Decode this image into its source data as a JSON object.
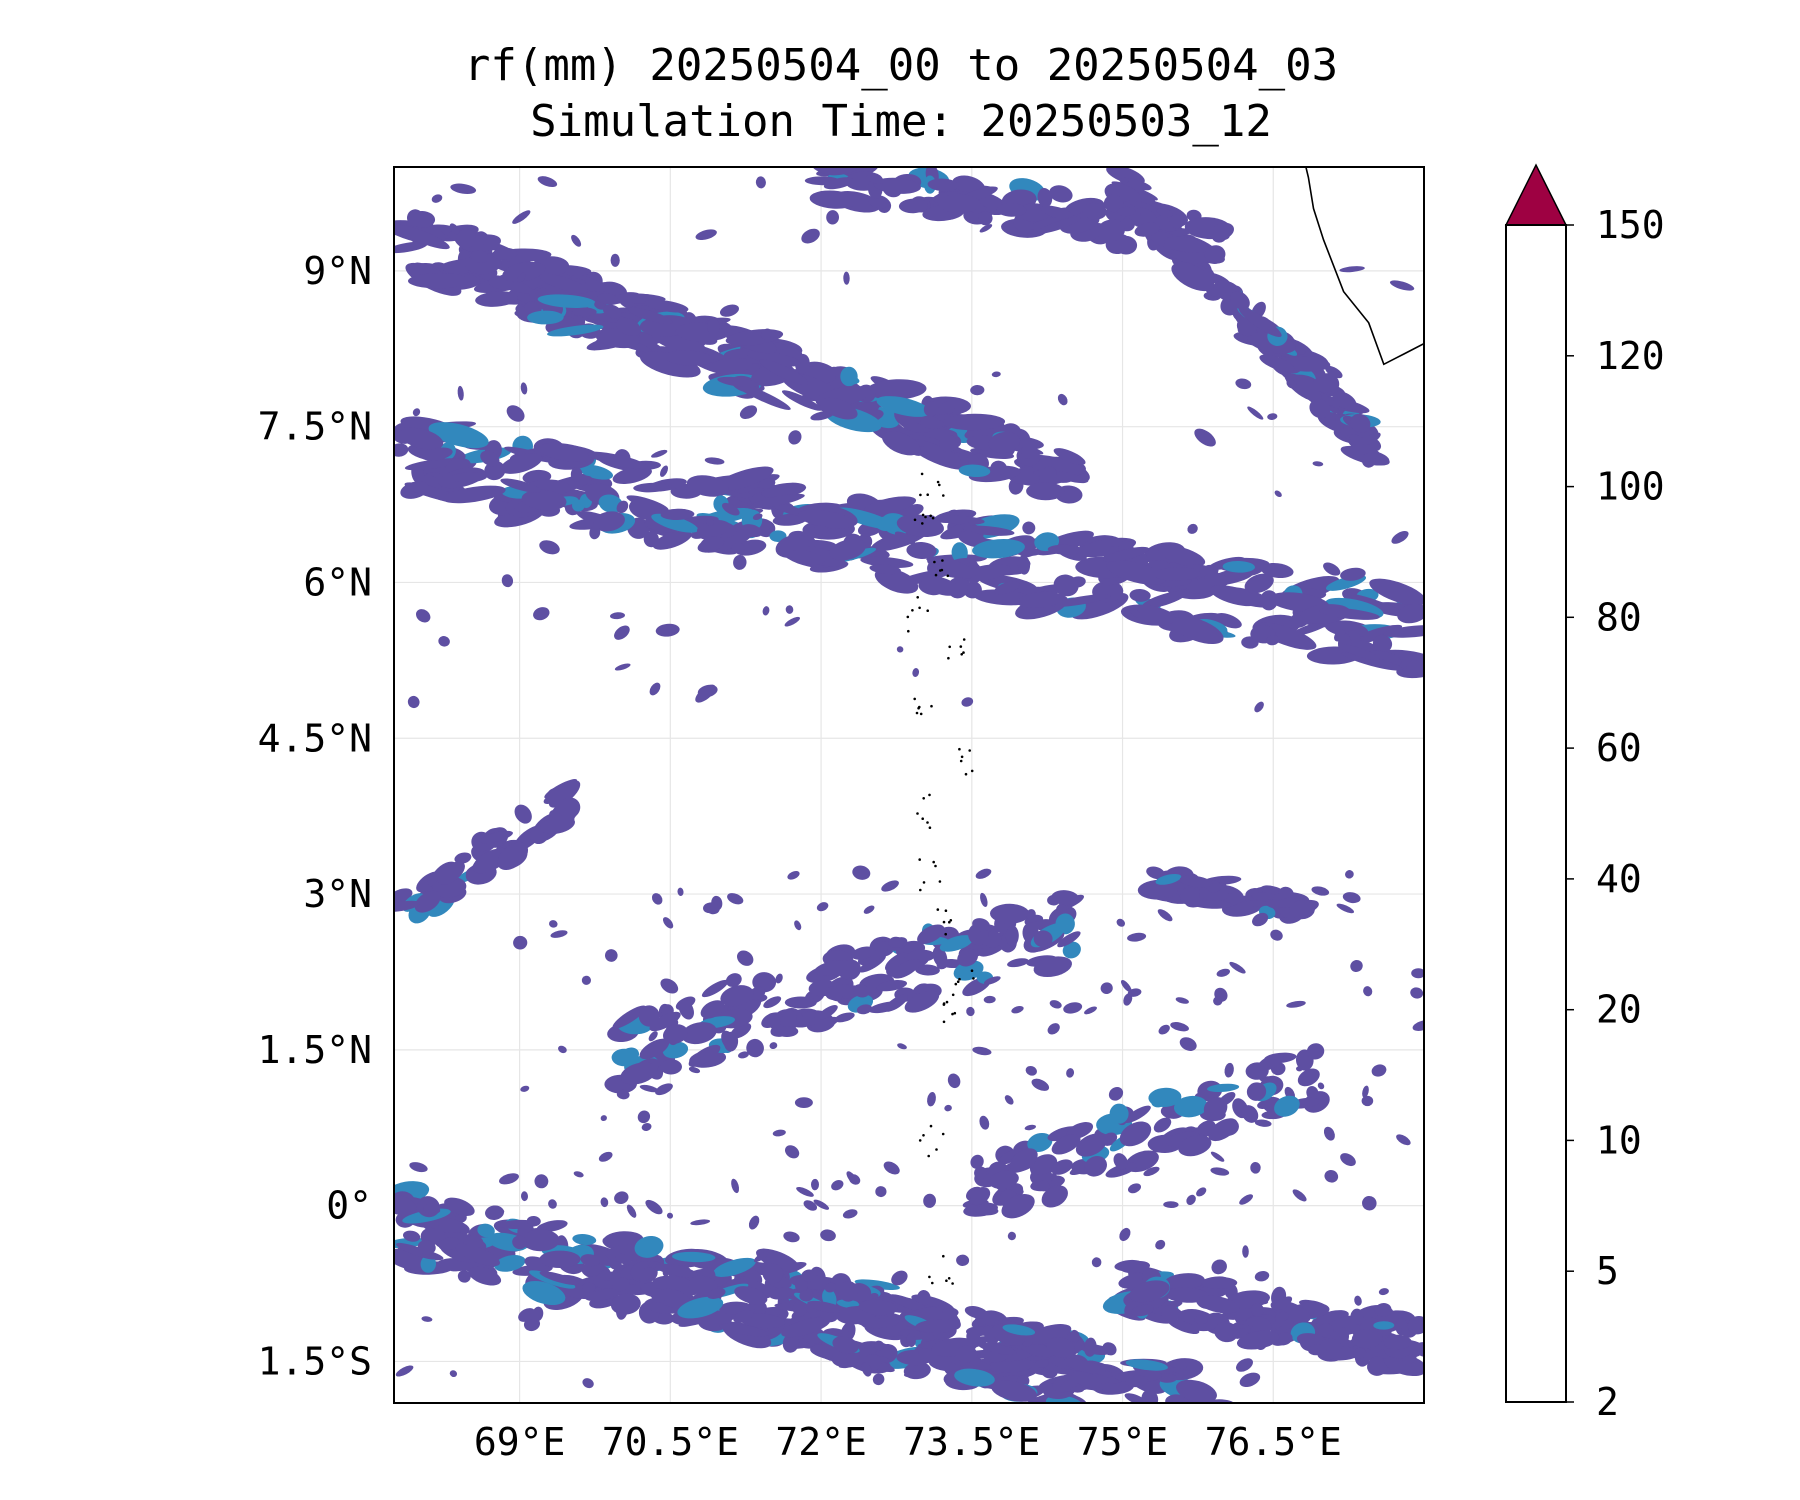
{
  "title_line1": "rf(mm) 20250504_00 to 20250504_03",
  "title_line2": "Simulation Time: 20250503_12",
  "map": {
    "lon_range": [
      67.75,
      78.0
    ],
    "lat_range": [
      -1.9,
      10.0
    ],
    "x_ticks": [
      {
        "value": 69.0,
        "label": "69°E"
      },
      {
        "value": 70.5,
        "label": "70.5°E"
      },
      {
        "value": 72.0,
        "label": "72°E"
      },
      {
        "value": 73.5,
        "label": "73.5°E"
      },
      {
        "value": 75.0,
        "label": "75°E"
      },
      {
        "value": 76.5,
        "label": "76.5°E"
      }
    ],
    "y_ticks": [
      {
        "value": 9.0,
        "label": "9°N"
      },
      {
        "value": 7.5,
        "label": "7.5°N"
      },
      {
        "value": 6.0,
        "label": "6°N"
      },
      {
        "value": 4.5,
        "label": "4.5°N"
      },
      {
        "value": 3.0,
        "label": "3°N"
      },
      {
        "value": 1.5,
        "label": "1.5°N"
      },
      {
        "value": 0.0,
        "label": "0°"
      },
      {
        "value": -1.5,
        "label": "1.5°S"
      }
    ],
    "gridlines": true,
    "rain_color_low": "#5e4fa2",
    "rain_color_mid": "#3288bd",
    "coastline_color": "#000000"
  },
  "colorbar": {
    "levels": [
      "2",
      "5",
      "10",
      "20",
      "40",
      "60",
      "80",
      "100",
      "120",
      "150"
    ],
    "colors": [
      "#5e4fa2",
      "#4f62ad",
      "#3a7fb8",
      "#66c2a5",
      "#bfe5a0",
      "#f4faad",
      "#fde08b",
      "#fb9d59",
      "#d53e4f"
    ],
    "extend_color": "#9e0142",
    "extend": "max"
  }
}
